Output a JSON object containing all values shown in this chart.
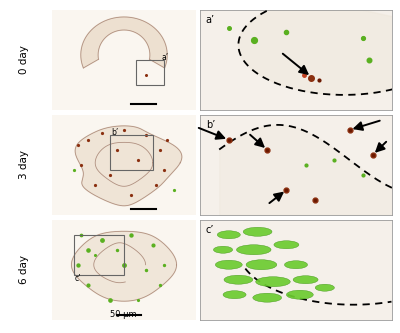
{
  "bg_color": "#ffffff",
  "fig_width": 4.0,
  "fig_height": 3.33,
  "dpi": 100,
  "row_labels": [
    "0 day",
    "3 day",
    "6 day"
  ],
  "scale_bar_text": "50 μm",
  "overview_bg": "#faf6f0",
  "right_bg": "#f5f0ea",
  "tissue_color": "#c8b8a8",
  "tissue_edge": "#b0a090",
  "brown_fill": "#8B3010",
  "brown_dark": "#6b1800",
  "green_fill": "#5ab020",
  "green_dark": "#3a8000",
  "dot_line_color": "#111111",
  "arrow_color": "#111111",
  "box_color": "#777777",
  "label_fontsize": 7.5,
  "panel_label_fontsize": 7,
  "scalebar_fontsize": 6
}
